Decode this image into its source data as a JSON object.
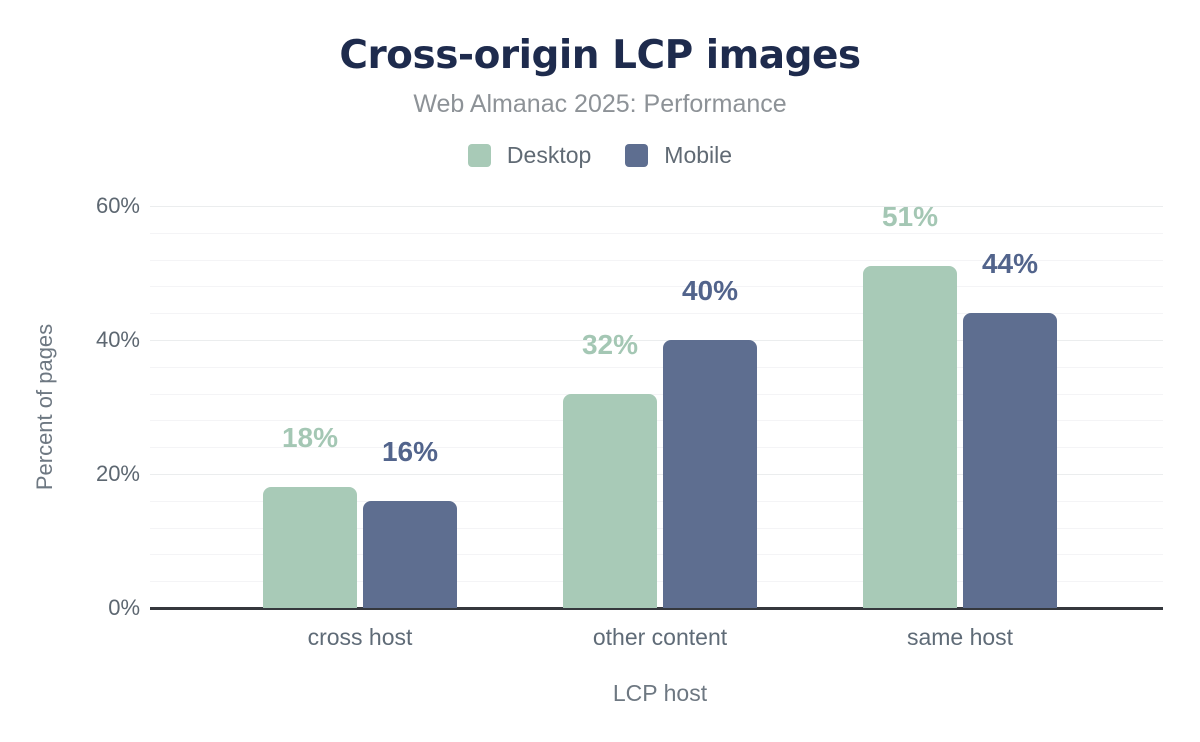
{
  "chart_data": {
    "type": "bar",
    "title": "Cross-origin LCP images",
    "subtitle": "Web Almanac 2025: Performance",
    "xlabel": "LCP host",
    "ylabel": "Percent of pages",
    "categories": [
      "cross host",
      "other content",
      "same host"
    ],
    "series": [
      {
        "name": "Desktop",
        "color": "#a8cab7",
        "label_color": "#a4c7b4",
        "values": [
          18,
          32,
          51
        ],
        "labels": [
          "18%",
          "32%",
          "51%"
        ]
      },
      {
        "name": "Mobile",
        "color": "#5e6e90",
        "label_color": "#52648c",
        "values": [
          16,
          40,
          44
        ],
        "labels": [
          "16%",
          "40%",
          "44%"
        ]
      }
    ],
    "ylim": [
      0,
      60
    ],
    "yticks": [
      {
        "value": 0,
        "label": "0%"
      },
      {
        "value": 20,
        "label": "20%"
      },
      {
        "value": 40,
        "label": "40%"
      },
      {
        "value": 60,
        "label": "60%"
      }
    ],
    "grid": true,
    "grid_minor_step": 4,
    "grid_major_step": 20,
    "legend_position": "top",
    "title_color": "#1e2b4d"
  }
}
